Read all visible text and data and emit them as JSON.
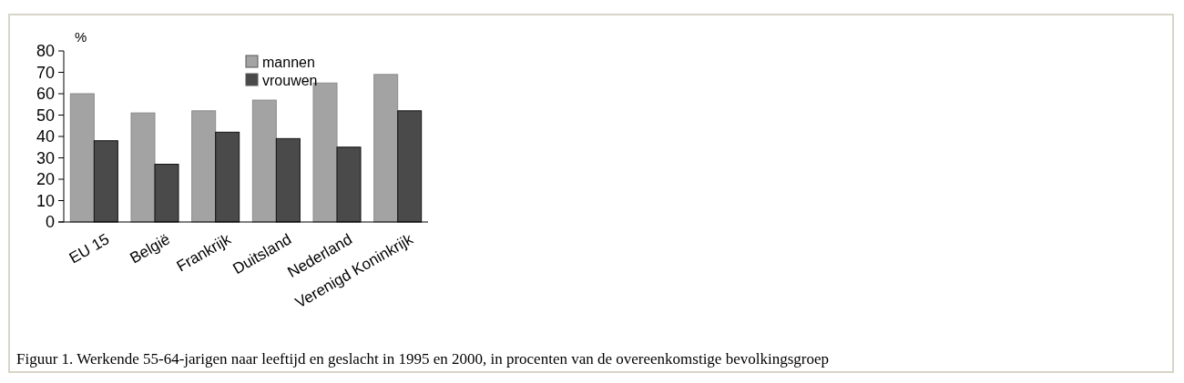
{
  "chart_data": {
    "type": "bar",
    "ylabel": "%",
    "categories": [
      "EU 15",
      "België",
      "Frankrijk",
      "Duitsland",
      "Nederland",
      "Verenigd Koninkrijk"
    ],
    "series": [
      {
        "name": "mannen",
        "color": "#a3a3a3",
        "values": [
          60,
          51,
          52,
          57,
          65,
          69
        ]
      },
      {
        "name": "vrouwen",
        "color": "#4a4a4a",
        "values": [
          38,
          27,
          42,
          39,
          35,
          52
        ]
      }
    ],
    "ylim": [
      0,
      80
    ],
    "yticks": [
      0,
      10,
      20,
      30,
      40,
      50,
      60,
      70,
      80
    ],
    "grid": false,
    "legend": "top",
    "annotations": [
      "Figuur 1. Werkende 55-64-jarigen naar leeftijd en geslacht in 1995 en 2000, in procenten van de overeenkomstige bevolkingsgroep"
    ]
  }
}
